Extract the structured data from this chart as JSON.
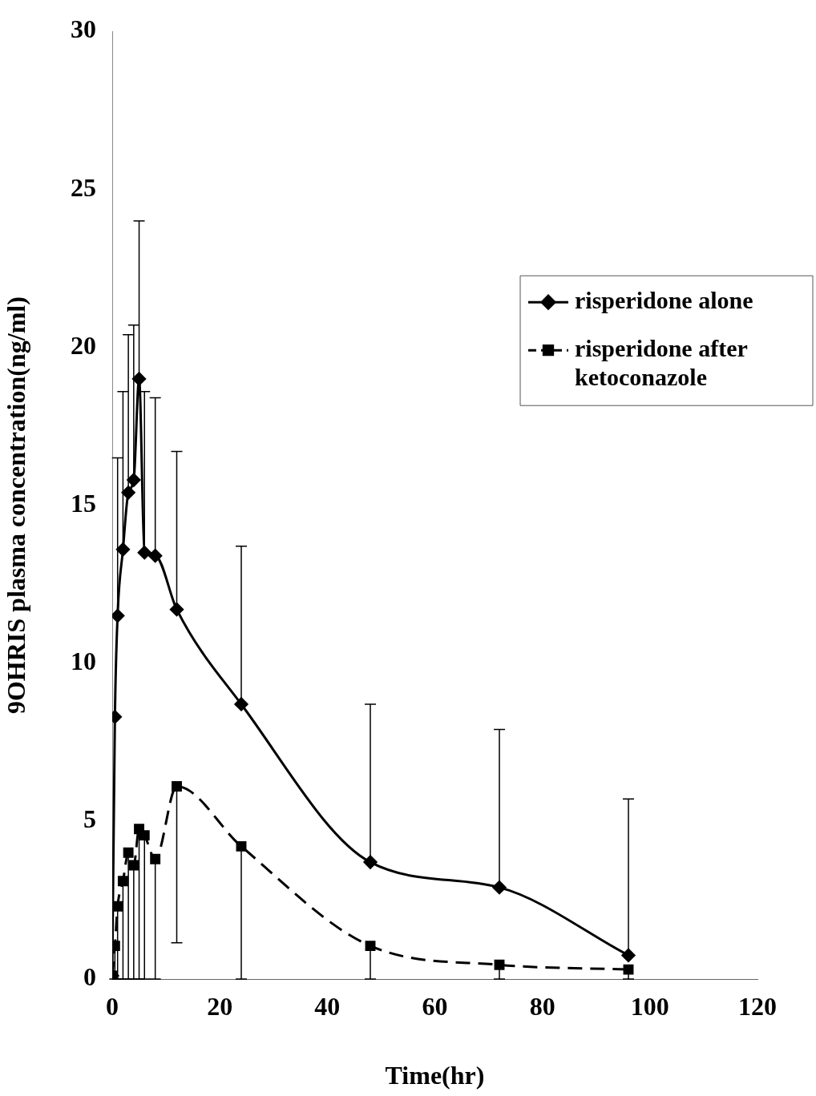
{
  "chart_data": {
    "type": "line",
    "xlabel": "Time(hr)",
    "ylabel": "9OHRIS plasma concentration(ng/ml)",
    "xlim": [
      0,
      120
    ],
    "xticks": [
      0,
      20,
      40,
      60,
      80,
      100,
      120
    ],
    "ylim": [
      0,
      30
    ],
    "yticks": [
      0,
      5,
      10,
      15,
      20,
      25,
      30
    ],
    "grid": false,
    "legend": "top right",
    "series": [
      {
        "name": "risperidone alone",
        "color": "#000000",
        "marker": "diamond",
        "line_style": "solid",
        "x": [
          0,
          0.5,
          1,
          2,
          3,
          4,
          5,
          6,
          8,
          12,
          24,
          48,
          72,
          96
        ],
        "values": [
          0.1,
          8.3,
          11.5,
          13.6,
          15.4,
          15.8,
          19.0,
          13.5,
          13.4,
          11.7,
          8.7,
          3.7,
          2.9,
          0.75
        ],
        "errors": [
          null,
          null,
          [
            11.5,
            16.5
          ],
          [
            13.6,
            18.6
          ],
          [
            15.4,
            20.4
          ],
          [
            15.8,
            20.7
          ],
          [
            19.0,
            24.0
          ],
          [
            13.5,
            18.6
          ],
          [
            13.4,
            18.4
          ],
          [
            11.7,
            16.7
          ],
          [
            8.7,
            13.7
          ],
          [
            3.7,
            8.7
          ],
          [
            2.9,
            7.9
          ],
          [
            0.75,
            5.7
          ]
        ]
      },
      {
        "name": "risperidone after ketoconazole",
        "color": "#000000",
        "marker": "square",
        "line_style": "dashed",
        "x": [
          0,
          0.5,
          1,
          2,
          3,
          4,
          5,
          6,
          8,
          12,
          24,
          48,
          72,
          96
        ],
        "values": [
          0.1,
          1.05,
          2.3,
          3.1,
          4.0,
          3.6,
          4.75,
          4.55,
          3.8,
          6.1,
          4.2,
          1.05,
          0.45,
          0.3
        ],
        "errors": [
          null,
          [
            0,
            1.05
          ],
          [
            0,
            2.3
          ],
          [
            0,
            3.1
          ],
          [
            0,
            4.0
          ],
          [
            0,
            3.6
          ],
          [
            0,
            4.75
          ],
          [
            0,
            4.55
          ],
          [
            0,
            3.8
          ],
          [
            1.15,
            6.1
          ],
          [
            0,
            4.2
          ],
          [
            0,
            1.05
          ],
          [
            0,
            0.45
          ],
          [
            0,
            0.3
          ]
        ]
      }
    ]
  }
}
